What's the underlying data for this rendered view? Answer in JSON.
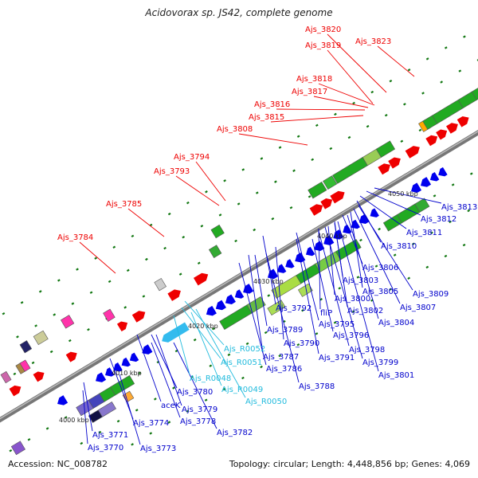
{
  "title": "Acidovorax sp. JS42, complete genome",
  "footer": {
    "accession": "Accession: NC_008782",
    "summary": "Topology: circular; Length: 4,448,856 bp; Genes: 4,069"
  },
  "colors": {
    "red_label": "#ee0000",
    "blue_label": "#0000cc",
    "cyan_label": "#22bbdd",
    "forward_cds": "#ee0000",
    "reverse_cds": "#0000ee",
    "rna": "#33bbee",
    "cog_green": "#22aa22",
    "backbone": "#888888"
  },
  "kbp_ticks": [
    "4000 kbp",
    "4010 kbp",
    "4020 kbp",
    "4030 kbp",
    "4040 kbp",
    "4050 kbp"
  ],
  "red_labels": [
    "Ajs_3820",
    "Ajs_3823",
    "Ajs_3819",
    "Ajs_3818",
    "Ajs_3817",
    "Ajs_3816",
    "Ajs_3815",
    "Ajs_3808",
    "Ajs_3794",
    "Ajs_3793",
    "Ajs_3785",
    "Ajs_3784"
  ],
  "blue_labels": [
    "Ajs_3813",
    "Ajs_3812",
    "Ajs_3811",
    "Ajs_3810",
    "Ajs_3806",
    "Ajs_3809",
    "Ajs_3803",
    "Ajs_3805",
    "Ajs_3807",
    "Ajs_3800",
    "Ajs_3792",
    "fliP",
    "Ajs_3802",
    "Ajs_3804",
    "Ajs_3795",
    "Ajs_3789",
    "Ajs_3796",
    "Ajs_3790",
    "Ajs_3798",
    "Ajs_3787",
    "Ajs_3791",
    "Ajs_3799",
    "Ajs_3786",
    "Ajs_3801",
    "Ajs_3788",
    "Ajs_3780",
    "aceK",
    "Ajs_3779",
    "Ajs_3774",
    "Ajs_3778",
    "Ajs_3782",
    "Ajs_3771",
    "Ajs_3770",
    "Ajs_3773"
  ],
  "cyan_labels": [
    "Ajs_R0052",
    "Ajs_R0051",
    "Ajs_R0048",
    "Ajs_R0049",
    "Ajs_R0050"
  ]
}
